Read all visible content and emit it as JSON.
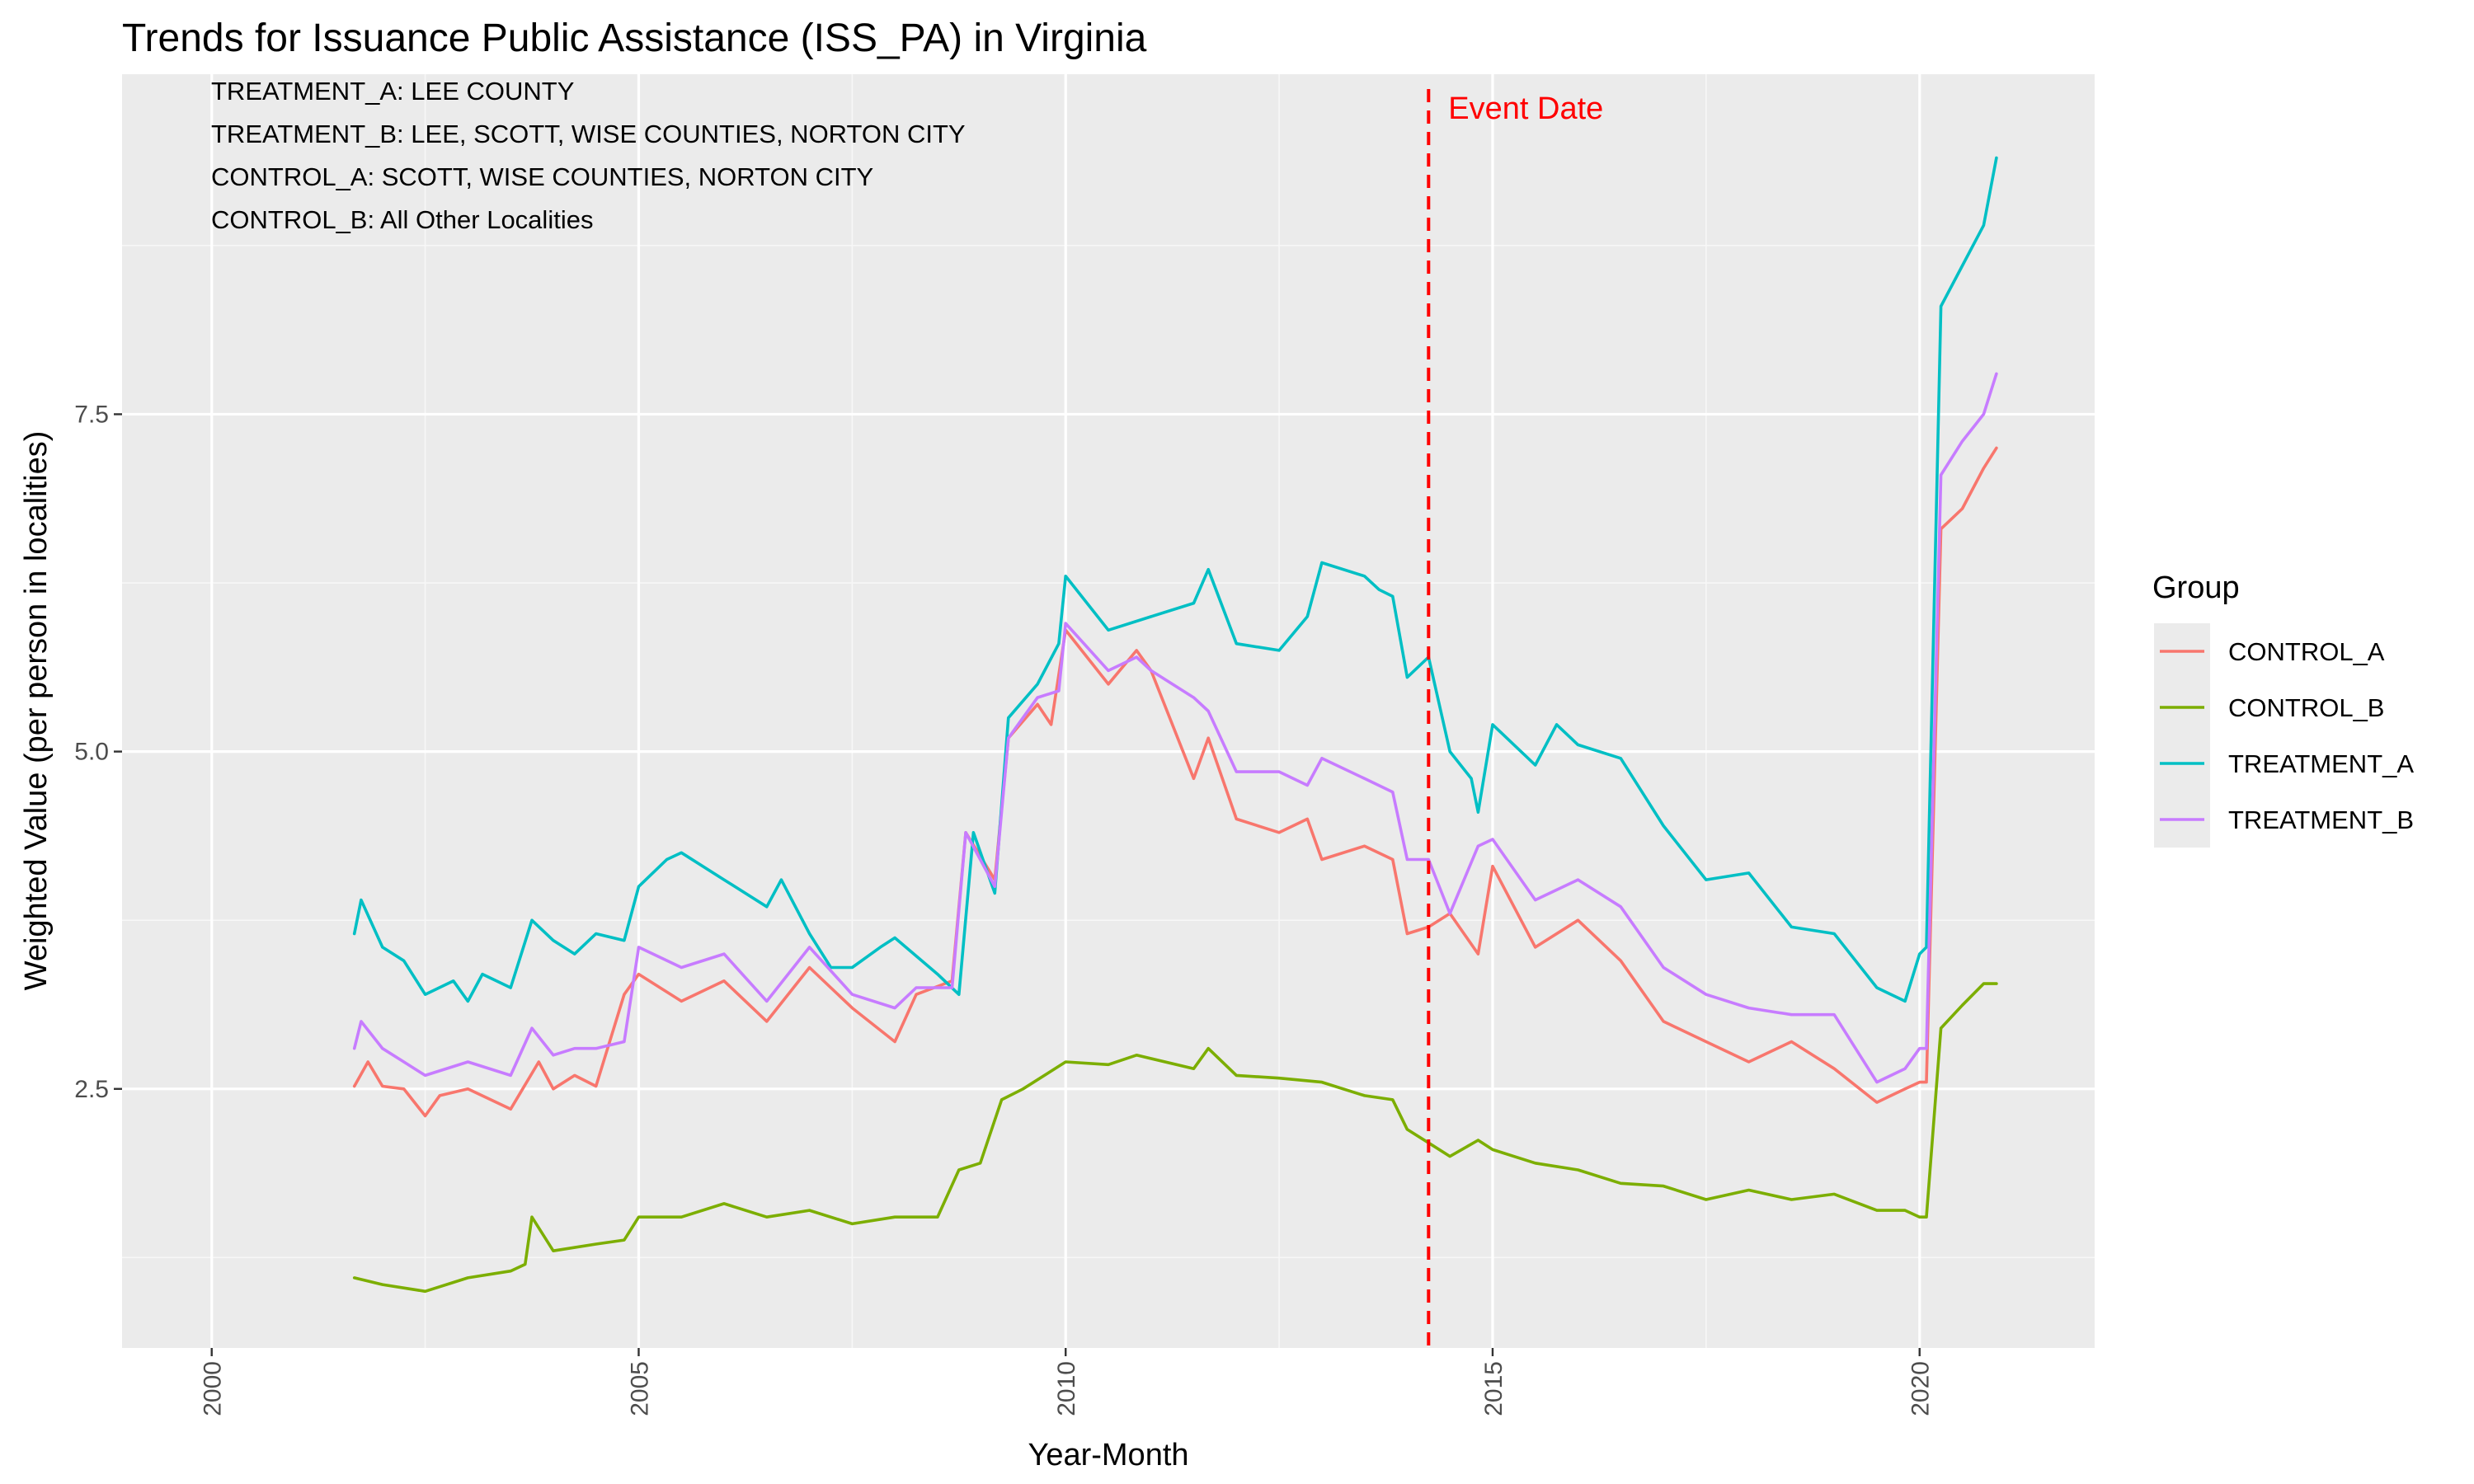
{
  "chart_data": {
    "type": "line",
    "title": "Trends for Issuance Public Assistance (ISS_PA) in Virginia",
    "xlabel": "Year-Month",
    "ylabel": "Weighted Value (per person in localities)",
    "xlim": [
      1998.95,
      2022.05
    ],
    "ylim": [
      0.58,
      10.02
    ],
    "x_ticks": [
      2000,
      2005,
      2010,
      2015,
      2020
    ],
    "x_tick_labels": [
      "2000",
      "2005",
      "2010",
      "2015",
      "2020"
    ],
    "y_ticks": [
      2.5,
      5.0,
      7.5
    ],
    "y_tick_labels": [
      "2.5",
      "5.0",
      "7.5"
    ],
    "grid": true,
    "legend": {
      "title": "Group",
      "position": "right"
    },
    "annotations": [
      "TREATMENT_A: LEE COUNTY",
      "TREATMENT_B: LEE, SCOTT, WISE COUNTIES, NORTON CITY",
      "CONTROL_A: SCOTT, WISE COUNTIES, NORTON CITY",
      "CONTROL_B: All Other Localities"
    ],
    "event": {
      "x": 2014.25,
      "label": "Event Date",
      "color": "#ff0000"
    },
    "series": [
      {
        "name": "CONTROL_A",
        "color": "#f8766d",
        "x": [
          2001.67,
          2001.83,
          2002.0,
          2002.25,
          2002.5,
          2002.67,
          2003.0,
          2003.5,
          2003.83,
          2004.0,
          2004.25,
          2004.5,
          2004.83,
          2005.0,
          2005.5,
          2006.0,
          2006.5,
          2007.0,
          2007.5,
          2008.0,
          2008.25,
          2008.67,
          2008.83,
          2009.17,
          2009.33,
          2009.67,
          2009.83,
          2010.0,
          2010.5,
          2010.83,
          2011.0,
          2011.5,
          2011.67,
          2012.0,
          2012.5,
          2012.83,
          2013.0,
          2013.5,
          2013.83,
          2014.0,
          2014.25,
          2014.5,
          2014.83,
          2015.0,
          2015.5,
          2016.0,
          2016.5,
          2017.0,
          2017.5,
          2018.0,
          2018.5,
          2019.0,
          2019.5,
          2019.83,
          2020.0,
          2020.08,
          2020.25,
          2020.5,
          2020.75,
          2020.9
        ],
        "values": [
          2.52,
          2.7,
          2.52,
          2.5,
          2.3,
          2.45,
          2.5,
          2.35,
          2.7,
          2.5,
          2.6,
          2.52,
          3.2,
          3.35,
          3.15,
          3.3,
          3.0,
          3.4,
          3.1,
          2.85,
          3.2,
          3.3,
          4.4,
          4.05,
          5.1,
          5.35,
          5.2,
          5.9,
          5.5,
          5.75,
          5.6,
          4.8,
          5.1,
          4.5,
          4.4,
          4.5,
          4.2,
          4.3,
          4.2,
          3.65,
          3.7,
          3.8,
          3.5,
          4.15,
          3.55,
          3.75,
          3.45,
          3.0,
          2.85,
          2.7,
          2.85,
          2.65,
          2.4,
          2.5,
          2.55,
          2.55,
          6.65,
          6.8,
          7.1,
          7.25
        ]
      },
      {
        "name": "CONTROL_B",
        "color": "#7cae00",
        "x": [
          2001.67,
          2002.0,
          2002.5,
          2003.0,
          2003.5,
          2003.67,
          2003.75,
          2004.0,
          2004.5,
          2004.83,
          2005.0,
          2005.5,
          2006.0,
          2006.5,
          2007.0,
          2007.5,
          2008.0,
          2008.5,
          2008.75,
          2009.0,
          2009.25,
          2009.5,
          2010.0,
          2010.5,
          2010.83,
          2011.5,
          2011.67,
          2012.0,
          2012.5,
          2013.0,
          2013.5,
          2013.83,
          2014.0,
          2014.25,
          2014.5,
          2014.83,
          2015.0,
          2015.5,
          2016.0,
          2016.5,
          2017.0,
          2017.5,
          2018.0,
          2018.5,
          2019.0,
          2019.5,
          2019.83,
          2020.0,
          2020.08,
          2020.25,
          2020.5,
          2020.75,
          2020.9
        ],
        "values": [
          1.1,
          1.05,
          1.0,
          1.1,
          1.15,
          1.2,
          1.55,
          1.3,
          1.35,
          1.38,
          1.55,
          1.55,
          1.65,
          1.55,
          1.6,
          1.5,
          1.55,
          1.55,
          1.9,
          1.95,
          2.42,
          2.5,
          2.7,
          2.68,
          2.75,
          2.65,
          2.8,
          2.6,
          2.58,
          2.55,
          2.45,
          2.42,
          2.2,
          2.1,
          2.0,
          2.12,
          2.05,
          1.95,
          1.9,
          1.8,
          1.78,
          1.68,
          1.75,
          1.68,
          1.72,
          1.6,
          1.6,
          1.55,
          1.55,
          2.95,
          3.12,
          3.28,
          3.28
        ]
      },
      {
        "name": "TREATMENT_A",
        "color": "#00bfc4",
        "x": [
          2001.67,
          2001.75,
          2002.0,
          2002.25,
          2002.5,
          2002.83,
          2003.0,
          2003.17,
          2003.5,
          2003.75,
          2004.0,
          2004.25,
          2004.5,
          2004.83,
          2005.0,
          2005.33,
          2005.5,
          2006.0,
          2006.5,
          2006.67,
          2007.0,
          2007.25,
          2007.5,
          2007.83,
          2008.0,
          2008.5,
          2008.75,
          2008.92,
          2009.17,
          2009.33,
          2009.67,
          2009.92,
          2010.0,
          2010.5,
          2011.0,
          2011.5,
          2011.67,
          2012.0,
          2012.5,
          2012.83,
          2013.0,
          2013.5,
          2013.67,
          2013.83,
          2014.0,
          2014.25,
          2014.5,
          2014.75,
          2014.83,
          2015.0,
          2015.5,
          2015.75,
          2016.0,
          2016.5,
          2017.0,
          2017.5,
          2018.0,
          2018.5,
          2019.0,
          2019.5,
          2019.83,
          2020.0,
          2020.08,
          2020.25,
          2020.5,
          2020.75,
          2020.9
        ],
        "values": [
          3.65,
          3.9,
          3.55,
          3.45,
          3.2,
          3.3,
          3.15,
          3.35,
          3.25,
          3.75,
          3.6,
          3.5,
          3.65,
          3.6,
          4.0,
          4.2,
          4.25,
          4.05,
          3.85,
          4.05,
          3.65,
          3.4,
          3.4,
          3.55,
          3.62,
          3.35,
          3.2,
          4.4,
          3.95,
          5.25,
          5.5,
          5.8,
          6.3,
          5.9,
          6.0,
          6.1,
          6.35,
          5.8,
          5.75,
          6.0,
          6.4,
          6.3,
          6.2,
          6.15,
          5.55,
          5.7,
          5.0,
          4.8,
          4.55,
          5.2,
          4.9,
          5.2,
          5.05,
          4.95,
          4.45,
          4.05,
          4.1,
          3.7,
          3.65,
          3.25,
          3.15,
          3.5,
          3.55,
          8.3,
          8.6,
          8.9,
          9.4
        ]
      },
      {
        "name": "TREATMENT_B",
        "color": "#c77cff",
        "x": [
          2001.67,
          2001.75,
          2002.0,
          2002.25,
          2002.5,
          2003.0,
          2003.5,
          2003.75,
          2004.0,
          2004.25,
          2004.5,
          2004.83,
          2005.0,
          2005.5,
          2006.0,
          2006.5,
          2007.0,
          2007.5,
          2008.0,
          2008.25,
          2008.67,
          2008.83,
          2009.17,
          2009.33,
          2009.67,
          2009.92,
          2010.0,
          2010.5,
          2010.83,
          2011.0,
          2011.5,
          2011.67,
          2012.0,
          2012.5,
          2012.83,
          2013.0,
          2013.5,
          2013.83,
          2014.0,
          2014.25,
          2014.5,
          2014.83,
          2015.0,
          2015.5,
          2016.0,
          2016.5,
          2017.0,
          2017.5,
          2018.0,
          2018.5,
          2019.0,
          2019.5,
          2019.83,
          2020.0,
          2020.08,
          2020.25,
          2020.5,
          2020.75,
          2020.9
        ],
        "values": [
          2.8,
          3.0,
          2.8,
          2.7,
          2.6,
          2.7,
          2.6,
          2.95,
          2.75,
          2.8,
          2.8,
          2.85,
          3.55,
          3.4,
          3.5,
          3.15,
          3.55,
          3.2,
          3.1,
          3.25,
          3.25,
          4.4,
          4.0,
          5.1,
          5.4,
          5.45,
          5.95,
          5.6,
          5.7,
          5.6,
          5.4,
          5.3,
          4.85,
          4.85,
          4.75,
          4.95,
          4.8,
          4.7,
          4.2,
          4.2,
          3.8,
          4.3,
          4.35,
          3.9,
          4.05,
          3.85,
          3.4,
          3.2,
          3.1,
          3.05,
          3.05,
          2.55,
          2.65,
          2.8,
          2.8,
          7.05,
          7.3,
          7.5,
          7.8
        ]
      }
    ]
  }
}
